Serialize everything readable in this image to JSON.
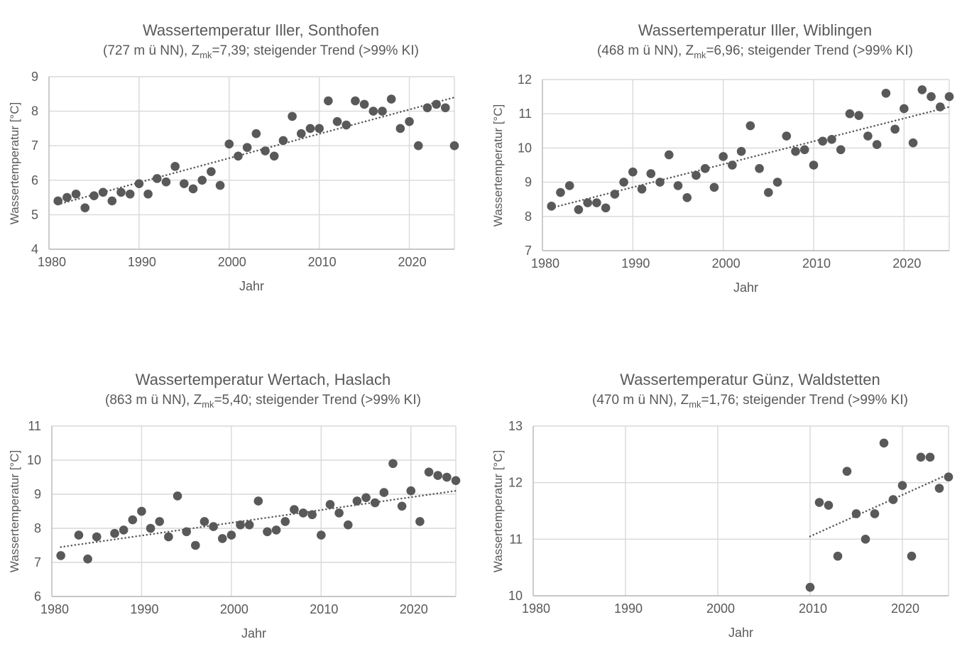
{
  "colors": {
    "text": "#595959",
    "marker": "#595959",
    "gridline": "#d9d9d9",
    "axis_line": "#bfbfbf",
    "background": "#ffffff",
    "trend_line": "#595959"
  },
  "chart_data": [
    {
      "type": "scatter",
      "title": "Wassertemperatur Iller, Sonthofen",
      "subtitle_prefix": "(727 m ü NN), Z",
      "subtitle_sub": "mk",
      "subtitle_suffix": "=7,39; steigender Trend (>99% KI)",
      "xlabel": "Jahr",
      "ylabel": "Wassertemperatur [°C]",
      "xlim": [
        1980,
        2025
      ],
      "ylim": [
        4,
        9
      ],
      "x_ticks": [
        1980,
        1990,
        2000,
        2010,
        2020
      ],
      "y_ticks": [
        4,
        5,
        6,
        7,
        8,
        9
      ],
      "grid": true,
      "legend": "none",
      "trend": {
        "x1": 1981,
        "y1": 5.3,
        "x2": 2025,
        "y2": 8.4,
        "style": "dotted"
      },
      "points": [
        [
          1981,
          5.4
        ],
        [
          1982,
          5.5
        ],
        [
          1983,
          5.6
        ],
        [
          1984,
          5.2
        ],
        [
          1985,
          5.55
        ],
        [
          1986,
          5.65
        ],
        [
          1987,
          5.4
        ],
        [
          1988,
          5.65
        ],
        [
          1989,
          5.6
        ],
        [
          1990,
          5.9
        ],
        [
          1991,
          5.6
        ],
        [
          1992,
          6.05
        ],
        [
          1993,
          5.95
        ],
        [
          1994,
          6.4
        ],
        [
          1995,
          5.9
        ],
        [
          1996,
          5.75
        ],
        [
          1997,
          6.0
        ],
        [
          1998,
          6.25
        ],
        [
          1999,
          5.85
        ],
        [
          2000,
          7.05
        ],
        [
          2001,
          6.7
        ],
        [
          2002,
          6.95
        ],
        [
          2003,
          7.35
        ],
        [
          2004,
          6.85
        ],
        [
          2005,
          6.7
        ],
        [
          2006,
          7.15
        ],
        [
          2007,
          7.85
        ],
        [
          2008,
          7.35
        ],
        [
          2009,
          7.5
        ],
        [
          2010,
          7.5
        ],
        [
          2011,
          8.3
        ],
        [
          2012,
          7.7
        ],
        [
          2013,
          7.6
        ],
        [
          2014,
          8.3
        ],
        [
          2015,
          8.2
        ],
        [
          2016,
          8.0
        ],
        [
          2017,
          8.0
        ],
        [
          2018,
          8.35
        ],
        [
          2019,
          7.5
        ],
        [
          2020,
          7.7
        ],
        [
          2021,
          7.0
        ],
        [
          2022,
          8.1
        ],
        [
          2023,
          8.2
        ],
        [
          2024,
          8.1
        ],
        [
          2025,
          7.0
        ]
      ]
    },
    {
      "type": "scatter",
      "title": "Wassertemperatur Iller, Wiblingen",
      "subtitle_prefix": "(468 m ü NN), Z",
      "subtitle_sub": "mk",
      "subtitle_suffix": "=6,96; steigender Trend (>99% KI)",
      "xlabel": "Jahr",
      "ylabel": "Wassertemperatur [°C]",
      "xlim": [
        1980,
        2025
      ],
      "ylim": [
        7,
        12
      ],
      "x_ticks": [
        1980,
        1990,
        2000,
        2010,
        2020
      ],
      "y_ticks": [
        7,
        8,
        9,
        10,
        11,
        12
      ],
      "grid": true,
      "legend": "none",
      "trend": {
        "x1": 1981,
        "y1": 8.25,
        "x2": 2025,
        "y2": 11.2,
        "style": "dotted"
      },
      "points": [
        [
          1981,
          8.3
        ],
        [
          1982,
          8.7
        ],
        [
          1983,
          8.9
        ],
        [
          1984,
          8.2
        ],
        [
          1985,
          8.4
        ],
        [
          1986,
          8.4
        ],
        [
          1987,
          8.25
        ],
        [
          1988,
          8.65
        ],
        [
          1989,
          9.0
        ],
        [
          1990,
          9.3
        ],
        [
          1991,
          8.8
        ],
        [
          1992,
          9.25
        ],
        [
          1993,
          9.0
        ],
        [
          1994,
          9.8
        ],
        [
          1995,
          8.9
        ],
        [
          1996,
          8.55
        ],
        [
          1997,
          9.2
        ],
        [
          1998,
          9.4
        ],
        [
          1999,
          8.85
        ],
        [
          2000,
          9.75
        ],
        [
          2001,
          9.5
        ],
        [
          2002,
          9.9
        ],
        [
          2003,
          10.65
        ],
        [
          2004,
          9.4
        ],
        [
          2005,
          8.7
        ],
        [
          2006,
          9.0
        ],
        [
          2007,
          10.35
        ],
        [
          2008,
          9.9
        ],
        [
          2009,
          9.95
        ],
        [
          2010,
          9.5
        ],
        [
          2011,
          10.2
        ],
        [
          2012,
          10.25
        ],
        [
          2013,
          9.95
        ],
        [
          2014,
          11.0
        ],
        [
          2015,
          10.95
        ],
        [
          2016,
          10.35
        ],
        [
          2017,
          10.1
        ],
        [
          2018,
          11.6
        ],
        [
          2019,
          10.55
        ],
        [
          2020,
          11.15
        ],
        [
          2021,
          10.15
        ],
        [
          2022,
          11.7
        ],
        [
          2023,
          11.5
        ],
        [
          2024,
          11.2
        ],
        [
          2025,
          11.5
        ]
      ]
    },
    {
      "type": "scatter",
      "title": "Wassertemperatur Wertach, Haslach",
      "subtitle_prefix": "(863 m ü NN), Z",
      "subtitle_sub": "mk",
      "subtitle_suffix": "=5,40; steigender Trend (>99% KI)",
      "xlabel": "Jahr",
      "ylabel": "Wassertemperatur [°C]",
      "xlim": [
        1980,
        2025
      ],
      "ylim": [
        6,
        11
      ],
      "x_ticks": [
        1980,
        1990,
        2000,
        2010,
        2020
      ],
      "y_ticks": [
        6,
        7,
        8,
        9,
        10,
        11
      ],
      "grid": true,
      "legend": "none",
      "trend": {
        "x1": 1981,
        "y1": 7.45,
        "x2": 2025,
        "y2": 9.1,
        "style": "dotted"
      },
      "points": [
        [
          1981,
          7.2
        ],
        [
          1983,
          7.8
        ],
        [
          1984,
          7.1
        ],
        [
          1985,
          7.75
        ],
        [
          1987,
          7.85
        ],
        [
          1988,
          7.95
        ],
        [
          1989,
          8.25
        ],
        [
          1990,
          8.5
        ],
        [
          1991,
          8.0
        ],
        [
          1992,
          8.2
        ],
        [
          1993,
          7.75
        ],
        [
          1994,
          8.95
        ],
        [
          1995,
          7.9
        ],
        [
          1996,
          7.5
        ],
        [
          1997,
          8.2
        ],
        [
          1998,
          8.05
        ],
        [
          1999,
          7.7
        ],
        [
          2000,
          7.8
        ],
        [
          2001,
          8.1
        ],
        [
          2002,
          8.1
        ],
        [
          2003,
          8.8
        ],
        [
          2004,
          7.9
        ],
        [
          2005,
          7.95
        ],
        [
          2006,
          8.2
        ],
        [
          2007,
          8.55
        ],
        [
          2008,
          8.45
        ],
        [
          2009,
          8.4
        ],
        [
          2010,
          7.8
        ],
        [
          2011,
          8.7
        ],
        [
          2012,
          8.45
        ],
        [
          2013,
          8.1
        ],
        [
          2014,
          8.8
        ],
        [
          2015,
          8.9
        ],
        [
          2016,
          8.75
        ],
        [
          2017,
          9.05
        ],
        [
          2018,
          9.9
        ],
        [
          2019,
          8.65
        ],
        [
          2020,
          9.1
        ],
        [
          2021,
          8.2
        ],
        [
          2022,
          9.65
        ],
        [
          2023,
          9.55
        ],
        [
          2024,
          9.5
        ],
        [
          2025,
          9.4
        ]
      ]
    },
    {
      "type": "scatter",
      "title": "Wassertemperatur Günz, Waldstetten",
      "subtitle_prefix": "(470 m ü NN), Z",
      "subtitle_sub": "mk",
      "subtitle_suffix": "=1,76; steigender Trend (>99% KI)",
      "xlabel": "Jahr",
      "ylabel": "Wassertemperatur [°C]",
      "xlim": [
        1980,
        2025
      ],
      "ylim": [
        10,
        13
      ],
      "x_ticks": [
        1980,
        1990,
        2000,
        2010,
        2020
      ],
      "y_ticks": [
        10,
        11,
        12,
        13
      ],
      "grid": true,
      "legend": "none",
      "trend": {
        "x1": 2010,
        "y1": 11.05,
        "x2": 2025,
        "y2": 12.15,
        "style": "dotted"
      },
      "points": [
        [
          2010,
          10.15
        ],
        [
          2011,
          11.65
        ],
        [
          2012,
          11.6
        ],
        [
          2013,
          10.7
        ],
        [
          2014,
          12.2
        ],
        [
          2015,
          11.45
        ],
        [
          2016,
          11.0
        ],
        [
          2017,
          11.45
        ],
        [
          2018,
          12.7
        ],
        [
          2019,
          11.7
        ],
        [
          2020,
          11.95
        ],
        [
          2021,
          10.7
        ],
        [
          2022,
          12.45
        ],
        [
          2023,
          12.45
        ],
        [
          2024,
          11.9
        ],
        [
          2025,
          12.1
        ]
      ]
    }
  ]
}
